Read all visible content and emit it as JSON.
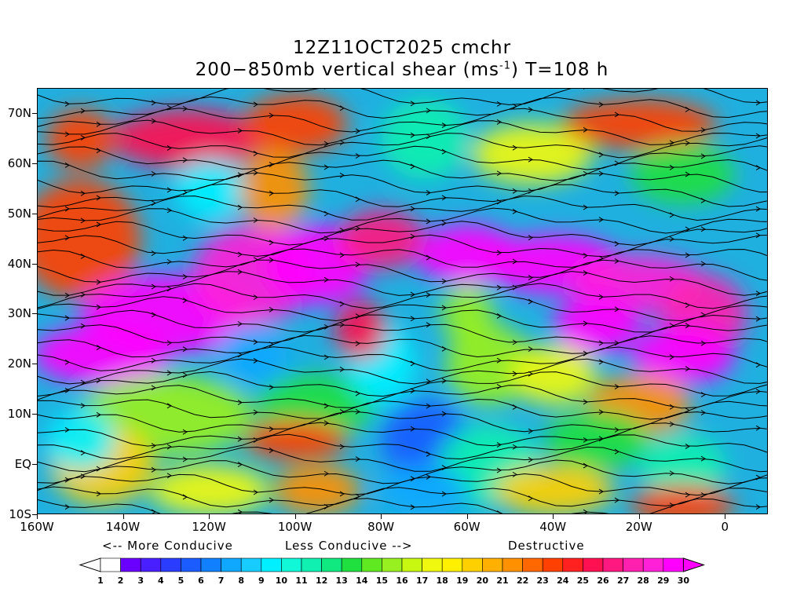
{
  "title": {
    "line1": "12Z11OCT2025 cmchr",
    "line2_prefix": "200−850mb vertical shear (ms",
    "line2_sup": "-1",
    "line2_suffix": ") T=108 h"
  },
  "map": {
    "projection": "lat-lon",
    "lon_range": [
      -160,
      10
    ],
    "lat_range": [
      -10,
      75
    ],
    "field": "vertical wind shear magnitude",
    "overlay": "streamlines",
    "lat_labels": [
      "70N",
      "60N",
      "50N",
      "40N",
      "30N",
      "20N",
      "10N",
      "EQ",
      "10S"
    ],
    "lat_values": [
      70,
      60,
      50,
      40,
      30,
      20,
      10,
      0,
      -10
    ],
    "lon_labels": [
      "160W",
      "140W",
      "120W",
      "100W",
      "80W",
      "60W",
      "40W",
      "20W",
      "0"
    ],
    "lon_values": [
      -160,
      -140,
      -120,
      -100,
      -80,
      -60,
      -40,
      -20,
      0
    ]
  },
  "legend": {
    "more_conducive": "<-- More Conducive",
    "less_conducive": "Less Conducive -->",
    "destructive": "Destructive"
  },
  "colorbar": {
    "labels": [
      "1",
      "2",
      "3",
      "4",
      "5",
      "6",
      "7",
      "8",
      "9",
      "10",
      "11",
      "12",
      "13",
      "14",
      "15",
      "16",
      "17",
      "18",
      "19",
      "20",
      "21",
      "22",
      "23",
      "24",
      "25",
      "26",
      "27",
      "28",
      "29",
      "30"
    ],
    "colors": [
      "#ffffff",
      "#6a00ff",
      "#4a1fff",
      "#2a3cff",
      "#1a5cff",
      "#1080ff",
      "#10a8ff",
      "#18ccff",
      "#00f0ff",
      "#10f8d8",
      "#10f0b0",
      "#10e880",
      "#20e040",
      "#60e820",
      "#98f020",
      "#c8f810",
      "#f0f810",
      "#fff000",
      "#ffd000",
      "#ffb000",
      "#ff9000",
      "#ff6800",
      "#ff4000",
      "#ff2020",
      "#ff1050",
      "#ff1880",
      "#ff20b0",
      "#ff20d8",
      "#ff00ff",
      "#ff00ff"
    ]
  }
}
